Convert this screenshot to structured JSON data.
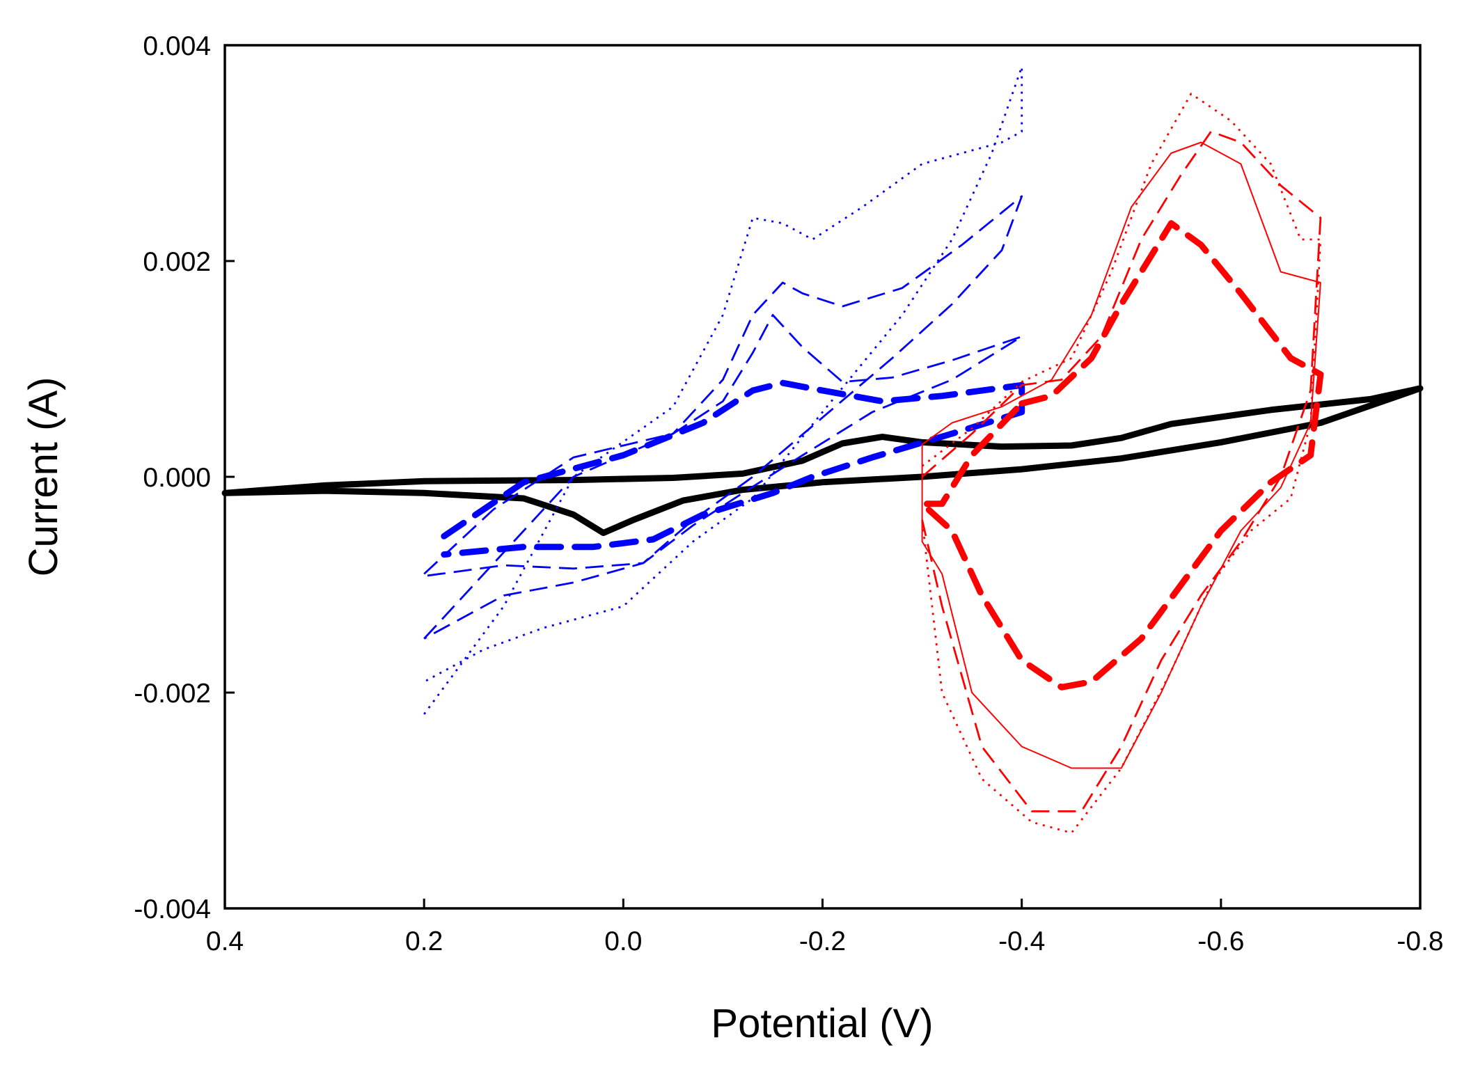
{
  "chart_data": {
    "type": "line",
    "title": "",
    "xlabel": "Potential (V)",
    "ylabel": "Current (A)",
    "xlim": [
      0.4,
      -0.8
    ],
    "ylim": [
      -0.004,
      0.004
    ],
    "x_ticks": [
      {
        "value": 0.4,
        "label": "0.4"
      },
      {
        "value": 0.2,
        "label": "0.2"
      },
      {
        "value": 0.0,
        "label": "0.0"
      },
      {
        "value": -0.2,
        "label": "-0.2"
      },
      {
        "value": -0.4,
        "label": "-0.4"
      },
      {
        "value": -0.6,
        "label": "-0.6"
      },
      {
        "value": -0.8,
        "label": "-0.8"
      }
    ],
    "y_ticks": [
      {
        "value": 0.004,
        "label": "0.004"
      },
      {
        "value": 0.002,
        "label": "0.002"
      },
      {
        "value": 0.0,
        "label": "0.000"
      },
      {
        "value": -0.002,
        "label": "-0.002"
      },
      {
        "value": -0.004,
        "label": "-0.004"
      }
    ],
    "grid": false,
    "legend": "none",
    "series": [
      {
        "name": "black-wide-scan",
        "color": "#000000",
        "style": "solid-thick",
        "points": [
          [
            0.4,
            -0.00015
          ],
          [
            0.3,
            -0.00013
          ],
          [
            0.2,
            -0.00015
          ],
          [
            0.1,
            -0.0002
          ],
          [
            0.05,
            -0.00035
          ],
          [
            0.02,
            -0.00052
          ],
          [
            -0.01,
            -0.0004
          ],
          [
            -0.06,
            -0.00022
          ],
          [
            -0.12,
            -0.00012
          ],
          [
            -0.2,
            -5e-05
          ],
          [
            -0.3,
            0.0
          ],
          [
            -0.4,
            7e-05
          ],
          [
            -0.5,
            0.00017
          ],
          [
            -0.6,
            0.00032
          ],
          [
            -0.7,
            0.0005
          ],
          [
            -0.8,
            0.00082
          ],
          [
            -0.75,
            0.00072
          ],
          [
            -0.65,
            0.00062
          ],
          [
            -0.55,
            0.00049
          ],
          [
            -0.5,
            0.00036
          ],
          [
            -0.45,
            0.00029
          ],
          [
            -0.38,
            0.00028
          ],
          [
            -0.3,
            0.00032
          ],
          [
            -0.26,
            0.00037
          ],
          [
            -0.22,
            0.00031
          ],
          [
            -0.18,
            0.00015
          ],
          [
            -0.12,
            3e-05
          ],
          [
            -0.05,
            -1e-05
          ],
          [
            0.05,
            -3e-05
          ],
          [
            0.2,
            -4e-05
          ],
          [
            0.3,
            -8e-05
          ],
          [
            0.4,
            -0.00015
          ]
        ]
      },
      {
        "name": "blue-thick-dash",
        "color": "#0000ff",
        "style": "thick-dash",
        "points": [
          [
            0.18,
            -0.00055
          ],
          [
            0.1,
            -5e-05
          ],
          [
            0.0,
            0.0002
          ],
          [
            -0.08,
            0.0005
          ],
          [
            -0.13,
            0.0008
          ],
          [
            -0.16,
            0.00087
          ],
          [
            -0.2,
            0.0008
          ],
          [
            -0.26,
            0.0007
          ],
          [
            -0.32,
            0.00075
          ],
          [
            -0.4,
            0.00085
          ],
          [
            -0.4,
            0.0006
          ],
          [
            -0.33,
            0.0004
          ],
          [
            -0.25,
            0.00018
          ],
          [
            -0.19,
            0.0
          ],
          [
            -0.15,
            -0.00015
          ],
          [
            -0.08,
            -0.00035
          ],
          [
            -0.03,
            -0.00058
          ],
          [
            0.03,
            -0.00065
          ],
          [
            0.1,
            -0.00065
          ],
          [
            0.18,
            -0.00072
          ]
        ]
      },
      {
        "name": "blue-medium-dash-inner",
        "color": "#0000ff",
        "style": "medium-dash",
        "points": [
          [
            0.2,
            -0.0009
          ],
          [
            0.13,
            -0.0003
          ],
          [
            0.05,
            0.00018
          ],
          [
            -0.05,
            0.0004
          ],
          [
            -0.1,
            0.0007
          ],
          [
            -0.13,
            0.00115
          ],
          [
            -0.15,
            0.0015
          ],
          [
            -0.18,
            0.0012
          ],
          [
            -0.22,
            0.00088
          ],
          [
            -0.27,
            0.00092
          ],
          [
            -0.33,
            0.00108
          ],
          [
            -0.4,
            0.0013
          ],
          [
            -0.33,
            0.0009
          ],
          [
            -0.25,
            0.0006
          ],
          [
            -0.18,
            0.0002
          ],
          [
            -0.12,
            -0.00015
          ],
          [
            -0.07,
            -0.00045
          ],
          [
            -0.02,
            -0.0008
          ],
          [
            0.05,
            -0.00085
          ],
          [
            0.12,
            -0.00082
          ],
          [
            0.2,
            -0.00092
          ]
        ]
      },
      {
        "name": "blue-medium-dash-outer",
        "color": "#0000ff",
        "style": "medium-dash",
        "points": [
          [
            0.2,
            -0.0015
          ],
          [
            0.13,
            -0.0008
          ],
          [
            0.05,
            0.0
          ],
          [
            -0.05,
            0.0004
          ],
          [
            -0.1,
            0.0009
          ],
          [
            -0.13,
            0.0015
          ],
          [
            -0.16,
            0.0018
          ],
          [
            -0.18,
            0.0017
          ],
          [
            -0.22,
            0.00158
          ],
          [
            -0.28,
            0.00175
          ],
          [
            -0.34,
            0.00215
          ],
          [
            -0.4,
            0.0026
          ],
          [
            -0.38,
            0.0021
          ],
          [
            -0.33,
            0.0016
          ],
          [
            -0.27,
            0.0011
          ],
          [
            -0.2,
            0.00055
          ],
          [
            -0.13,
            0.0
          ],
          [
            -0.07,
            -0.0004
          ],
          [
            -0.02,
            -0.0008
          ],
          [
            0.05,
            -0.00098
          ],
          [
            0.12,
            -0.0011
          ],
          [
            0.2,
            -0.0015
          ]
        ]
      },
      {
        "name": "blue-dotted",
        "color": "#0000ff",
        "style": "dotted",
        "points": [
          [
            0.2,
            -0.0022
          ],
          [
            0.12,
            -0.0012
          ],
          [
            0.05,
            0.0
          ],
          [
            -0.05,
            0.00065
          ],
          [
            -0.1,
            0.0015
          ],
          [
            -0.13,
            0.0024
          ],
          [
            -0.16,
            0.00235
          ],
          [
            -0.19,
            0.0022
          ],
          [
            -0.24,
            0.0025
          ],
          [
            -0.3,
            0.0029
          ],
          [
            -0.38,
            0.0031
          ],
          [
            -0.4,
            0.0032
          ],
          [
            -0.4,
            0.0038
          ],
          [
            -0.37,
            0.003
          ],
          [
            -0.33,
            0.0022
          ],
          [
            -0.28,
            0.0015
          ],
          [
            -0.2,
            0.0006
          ],
          [
            -0.13,
            -0.0002
          ],
          [
            -0.07,
            -0.0006
          ],
          [
            0.0,
            -0.0012
          ],
          [
            0.08,
            -0.0014
          ],
          [
            0.14,
            -0.0016
          ],
          [
            0.2,
            -0.0019
          ]
        ]
      },
      {
        "name": "red-thick-dash",
        "color": "#ff0000",
        "style": "thick-dash",
        "points": [
          [
            -0.4,
            0.00068
          ],
          [
            -0.43,
            0.00075
          ],
          [
            -0.47,
            0.0011
          ],
          [
            -0.5,
            0.0016
          ],
          [
            -0.52,
            0.0019
          ],
          [
            -0.55,
            0.00235
          ],
          [
            -0.58,
            0.00215
          ],
          [
            -0.62,
            0.0017
          ],
          [
            -0.67,
            0.0011
          ],
          [
            -0.7,
            0.00095
          ],
          [
            -0.69,
            0.0002
          ],
          [
            -0.65,
            -5e-05
          ],
          [
            -0.6,
            -0.0005
          ],
          [
            -0.56,
            -0.001
          ],
          [
            -0.52,
            -0.0015
          ],
          [
            -0.47,
            -0.0019
          ],
          [
            -0.44,
            -0.00195
          ],
          [
            -0.4,
            -0.0017
          ],
          [
            -0.36,
            -0.0011
          ],
          [
            -0.33,
            -0.0005
          ],
          [
            -0.3,
            -0.00025
          ],
          [
            -0.32,
            -0.00025
          ],
          [
            -0.35,
            0.0002
          ],
          [
            -0.4,
            0.00068
          ]
        ]
      },
      {
        "name": "red-medium-dash",
        "color": "#ff0000",
        "style": "medium-dash",
        "points": [
          [
            -0.3,
            0.0
          ],
          [
            -0.35,
            0.0004
          ],
          [
            -0.4,
            0.00085
          ],
          [
            -0.44,
            0.0009
          ],
          [
            -0.48,
            0.0013
          ],
          [
            -0.52,
            0.0022
          ],
          [
            -0.56,
            0.0028
          ],
          [
            -0.59,
            0.0032
          ],
          [
            -0.62,
            0.0031
          ],
          [
            -0.66,
            0.0027
          ],
          [
            -0.7,
            0.0024
          ],
          [
            -0.69,
            0.0008
          ],
          [
            -0.66,
            0.0
          ],
          [
            -0.62,
            -0.0006
          ],
          [
            -0.58,
            -0.0011
          ],
          [
            -0.54,
            -0.0017
          ],
          [
            -0.5,
            -0.0025
          ],
          [
            -0.46,
            -0.0031
          ],
          [
            -0.41,
            -0.0031
          ],
          [
            -0.36,
            -0.0025
          ],
          [
            -0.32,
            -0.0012
          ],
          [
            -0.3,
            -0.0004
          ]
        ]
      },
      {
        "name": "red-dotted",
        "color": "#ff0000",
        "style": "dotted",
        "points": [
          [
            -0.3,
            0.0001
          ],
          [
            -0.35,
            0.00045
          ],
          [
            -0.4,
            0.00088
          ],
          [
            -0.45,
            0.0011
          ],
          [
            -0.49,
            0.0019
          ],
          [
            -0.53,
            0.0029
          ],
          [
            -0.57,
            0.00355
          ],
          [
            -0.61,
            0.0033
          ],
          [
            -0.65,
            0.0029
          ],
          [
            -0.68,
            0.0022
          ],
          [
            -0.7,
            0.0022
          ],
          [
            -0.69,
            0.0005
          ],
          [
            -0.67,
            -0.0002
          ],
          [
            -0.63,
            -0.0005
          ],
          [
            -0.59,
            -0.001
          ],
          [
            -0.55,
            -0.0018
          ],
          [
            -0.5,
            -0.0027
          ],
          [
            -0.45,
            -0.0033
          ],
          [
            -0.41,
            -0.0032
          ],
          [
            -0.36,
            -0.0028
          ],
          [
            -0.32,
            -0.002
          ],
          [
            -0.3,
            -0.0004
          ]
        ]
      },
      {
        "name": "red-thin-solid",
        "color": "#ff0000",
        "style": "thin-solid",
        "points": [
          [
            -0.3,
            -0.0006
          ],
          [
            -0.3,
            0.0003
          ],
          [
            -0.33,
            0.0005
          ],
          [
            -0.38,
            0.00065
          ],
          [
            -0.43,
            0.0009
          ],
          [
            -0.47,
            0.0015
          ],
          [
            -0.51,
            0.0025
          ],
          [
            -0.55,
            0.003
          ],
          [
            -0.58,
            0.0031
          ],
          [
            -0.62,
            0.0029
          ],
          [
            -0.66,
            0.0019
          ],
          [
            -0.7,
            0.0018
          ],
          [
            -0.69,
            0.0005
          ],
          [
            -0.66,
            -0.0001
          ],
          [
            -0.62,
            -0.0005
          ],
          [
            -0.58,
            -0.0012
          ],
          [
            -0.54,
            -0.002
          ],
          [
            -0.5,
            -0.0027
          ],
          [
            -0.45,
            -0.0027
          ],
          [
            -0.4,
            -0.0025
          ],
          [
            -0.35,
            -0.002
          ],
          [
            -0.32,
            -0.0009
          ],
          [
            -0.3,
            -0.0006
          ]
        ]
      }
    ]
  }
}
